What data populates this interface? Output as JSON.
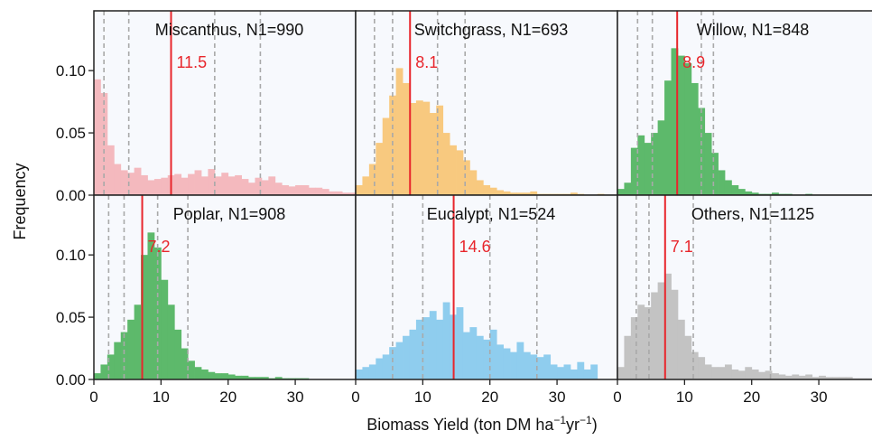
{
  "figure": {
    "xlabel_main": "Biomass Yield (ton DM ha",
    "xlabel_sup1": "−1",
    "xlabel_mid": "yr",
    "xlabel_sup2": "−1",
    "xlabel_end": ")",
    "ylabel": "Frequency"
  },
  "chart_data": [
    {
      "type": "bar",
      "panel": "Miscanthus",
      "title": "Miscanthus, N1=990",
      "color": "#f4b9be",
      "bin_width": 1,
      "bin_start": 0,
      "values": [
        0.093,
        0.082,
        0.04,
        0.025,
        0.02,
        0.018,
        0.022,
        0.016,
        0.012,
        0.013,
        0.014,
        0.016,
        0.017,
        0.014,
        0.017,
        0.02,
        0.015,
        0.021,
        0.015,
        0.018,
        0.015,
        0.016,
        0.013,
        0.01,
        0.014,
        0.012,
        0.015,
        0.01,
        0.008,
        0.007,
        0.008,
        0.008,
        0.006,
        0.006,
        0.005,
        0.003,
        0.003,
        0.002,
        0.002
      ],
      "median": 11.5,
      "median_label": "11.5",
      "dashed_lines": [
        1.5,
        5.2,
        18.0,
        24.8
      ],
      "xlim": [
        0,
        39
      ],
      "ylim": [
        0,
        0.148
      ],
      "xticks": [
        "0",
        "10",
        "20",
        "30"
      ],
      "yticks": [
        "0.00",
        "0.05",
        "0.10"
      ]
    },
    {
      "type": "bar",
      "panel": "Switchgrass",
      "title": "Switchgrass, N1=693",
      "color": "#f8c97f",
      "bin_width": 1,
      "bin_start": 0,
      "values": [
        0.008,
        0.015,
        0.025,
        0.042,
        0.062,
        0.08,
        0.102,
        0.09,
        0.074,
        0.076,
        0.075,
        0.066,
        0.072,
        0.05,
        0.04,
        0.036,
        0.028,
        0.02,
        0.012,
        0.008,
        0.006,
        0.004,
        0.003,
        0.002,
        0.002,
        0.002,
        0.003,
        0.001,
        0.001,
        0.001,
        0.001,
        0.001,
        0.002,
        0.001,
        0.0,
        0.0,
        0.001,
        0.0,
        0.0
      ],
      "median": 8.1,
      "median_label": "8.1",
      "dashed_lines": [
        2.8,
        5.5,
        12.2,
        16.3
      ],
      "xlim": [
        0,
        39
      ],
      "ylim": [
        0,
        0.148
      ],
      "xticks": [
        "0",
        "10",
        "20",
        "30"
      ],
      "yticks": [
        "0.00",
        "0.05",
        "0.10"
      ]
    },
    {
      "type": "bar",
      "panel": "Willow",
      "title": "Willow, N1=848",
      "color": "#5db96b",
      "bin_width": 1,
      "bin_start": 0,
      "values": [
        0.005,
        0.01,
        0.038,
        0.048,
        0.042,
        0.05,
        0.06,
        0.092,
        0.118,
        0.112,
        0.106,
        0.09,
        0.07,
        0.05,
        0.034,
        0.02,
        0.012,
        0.008,
        0.005,
        0.003,
        0.002,
        0.001,
        0.001,
        0.002,
        0.001,
        0.001,
        0.0,
        0.0,
        0.001,
        0.0,
        0.0,
        0.0,
        0.0,
        0.0,
        0.0,
        0.0,
        0.0,
        0.0,
        0.0
      ],
      "median": 8.9,
      "median_label": "8.9",
      "dashed_lines": [
        3.0,
        5.2,
        12.5,
        14.3
      ],
      "xlim": [
        0,
        39
      ],
      "ylim": [
        0,
        0.148
      ],
      "xticks": [
        "0",
        "10",
        "20",
        "30"
      ],
      "yticks": [
        "0.00",
        "0.05",
        "0.10"
      ]
    },
    {
      "type": "bar",
      "panel": "Poplar",
      "title": "Poplar, N1=908",
      "color": "#5db96b",
      "bin_width": 1,
      "bin_start": 0,
      "values": [
        0.005,
        0.012,
        0.02,
        0.03,
        0.038,
        0.048,
        0.06,
        0.1,
        0.118,
        0.106,
        0.08,
        0.06,
        0.04,
        0.025,
        0.015,
        0.01,
        0.008,
        0.006,
        0.005,
        0.005,
        0.004,
        0.003,
        0.003,
        0.002,
        0.002,
        0.002,
        0.001,
        0.002,
        0.001,
        0.001,
        0.001,
        0.001,
        0.0,
        0.0,
        0.0,
        0.0,
        0.0,
        0.0,
        0.0
      ],
      "median": 7.2,
      "median_label": "7.2",
      "dashed_lines": [
        2.2,
        4.5,
        9.5,
        14.0
      ],
      "xlim": [
        0,
        39
      ],
      "ylim": [
        0,
        0.148
      ],
      "xticks": [
        "0",
        "10",
        "20",
        "30"
      ],
      "yticks": [
        "0.00",
        "0.05",
        "0.10"
      ]
    },
    {
      "type": "bar",
      "panel": "Eucalypt",
      "title": "Eucalypt, N1=524",
      "color": "#8fcdee",
      "bin_width": 1,
      "bin_start": 0,
      "values": [
        0.008,
        0.01,
        0.012,
        0.017,
        0.02,
        0.026,
        0.03,
        0.035,
        0.04,
        0.048,
        0.05,
        0.055,
        0.048,
        0.062,
        0.052,
        0.058,
        0.038,
        0.042,
        0.035,
        0.032,
        0.04,
        0.028,
        0.025,
        0.022,
        0.03,
        0.022,
        0.02,
        0.018,
        0.02,
        0.012,
        0.01,
        0.012,
        0.008,
        0.014,
        0.008,
        0.012,
        0.0,
        0.0,
        0.0
      ],
      "median": 14.6,
      "median_label": "14.6",
      "dashed_lines": [
        5.5,
        10.0,
        20.0,
        27.0
      ],
      "xlim": [
        0,
        39
      ],
      "ylim": [
        0,
        0.148
      ],
      "xticks": [
        "0",
        "10",
        "20",
        "30"
      ],
      "yticks": [
        "0.00",
        "0.05",
        "0.10"
      ]
    },
    {
      "type": "bar",
      "panel": "Others",
      "title": "Others, N1=1125",
      "color": "#c3c3c3",
      "bin_width": 1,
      "bin_start": 0,
      "values": [
        0.01,
        0.035,
        0.05,
        0.06,
        0.058,
        0.07,
        0.078,
        0.085,
        0.072,
        0.048,
        0.035,
        0.022,
        0.018,
        0.012,
        0.01,
        0.01,
        0.012,
        0.008,
        0.007,
        0.01,
        0.008,
        0.006,
        0.007,
        0.005,
        0.004,
        0.003,
        0.004,
        0.003,
        0.004,
        0.002,
        0.003,
        0.002,
        0.002,
        0.002,
        0.002,
        0.001,
        0.001,
        0.001,
        0.001
      ],
      "median": 7.1,
      "median_label": "7.1",
      "dashed_lines": [
        2.8,
        4.7,
        11.3,
        22.8
      ],
      "xlim": [
        0,
        39
      ],
      "ylim": [
        0,
        0.148
      ],
      "xticks": [
        "0",
        "10",
        "20",
        "30"
      ],
      "yticks": [
        "0.00",
        "0.05",
        "0.10"
      ]
    }
  ]
}
